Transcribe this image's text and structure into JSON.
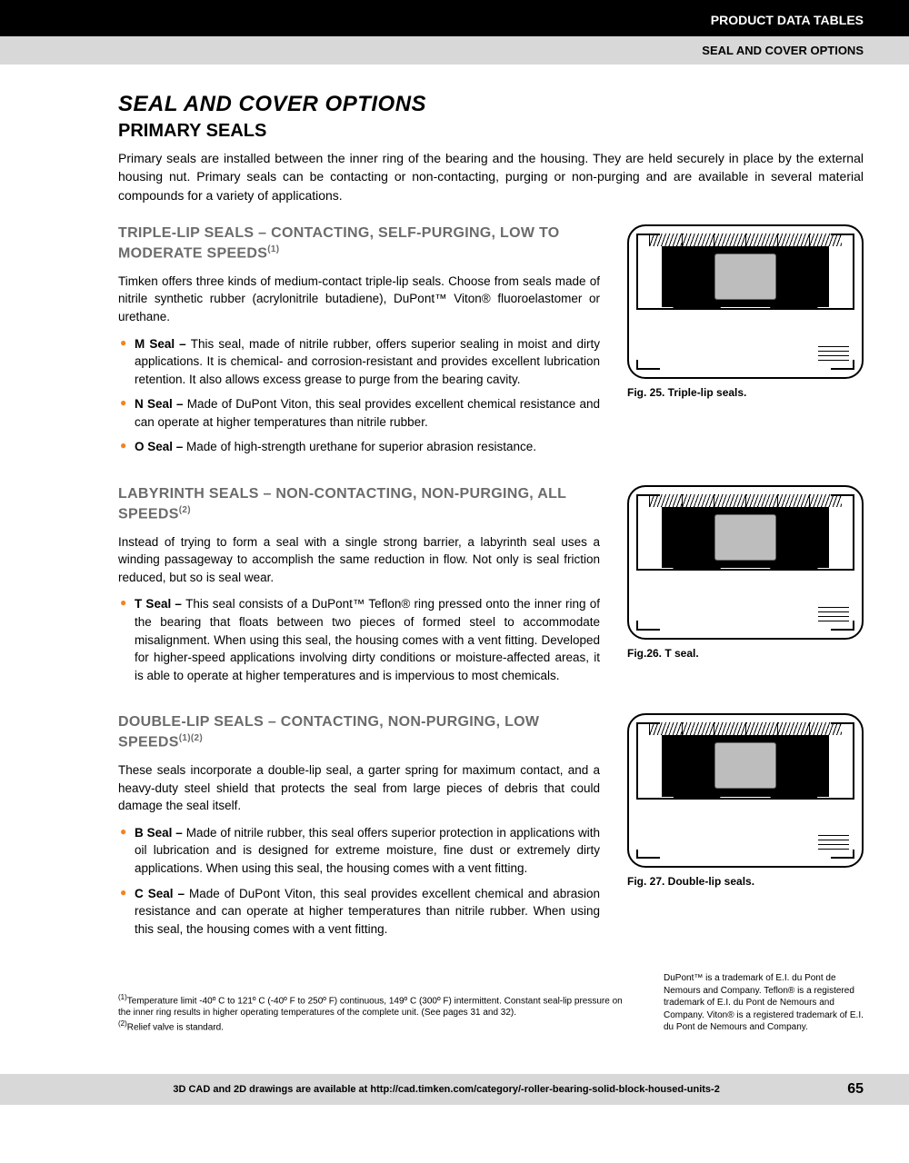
{
  "header": {
    "line1": "PRODUCT DATA TABLES",
    "line2": "SEAL AND COVER OPTIONS"
  },
  "title": "SEAL AND COVER OPTIONS",
  "subtitle": "PRIMARY SEALS",
  "intro": "Primary seals are installed between the inner ring of the bearing and the housing. They are held securely in place by the external housing nut. Primary seals can be contacting or non-contacting, purging or non-purging and are available in several material compounds for a variety of applications.",
  "sections": [
    {
      "heading": "TRIPLE-LIP SEALS – CONTACTING, SELF-PURGING, LOW TO MODERATE SPEEDS",
      "sup": "(1)",
      "para": "Timken offers three kinds of medium-contact triple-lip seals. Choose from seals made of nitrile synthetic rubber (acrylonitrile butadiene), DuPont™ Viton® fluoroelastomer or urethane.",
      "bullets": [
        {
          "label": "M Seal –",
          "text": "This seal, made of nitrile rubber, offers superior sealing in moist and dirty applications. It is chemical- and corrosion-resistant and provides excellent lubrication retention. It also allows excess grease to purge from the bearing cavity."
        },
        {
          "label": "N Seal –",
          "text": "Made of DuPont Viton, this seal provides excellent chemical resistance and can operate at higher temperatures than nitrile rubber."
        },
        {
          "label": "O Seal –",
          "text": "Made of high-strength urethane for superior abrasion resistance."
        }
      ],
      "caption": "Fig. 25. Triple-lip seals."
    },
    {
      "heading": "LABYRINTH SEALS – NON-CONTACTING, NON-PURGING, ALL SPEEDS",
      "sup": "(2)",
      "para": "Instead of trying to form a seal with a single strong barrier, a labyrinth seal uses a winding passageway to accomplish the same reduction in flow. Not only is seal friction reduced, but so is seal wear.",
      "bullets": [
        {
          "label": "T Seal –",
          "text": "This seal consists of a DuPont™ Teflon® ring pressed onto the inner ring of the bearing that floats between two pieces of formed steel to accommodate misalignment. When using this seal, the housing comes with a vent fitting. Developed for higher-speed applications involving dirty conditions or moisture-affected areas, it is able to operate at higher temperatures and is impervious to most chemicals."
        }
      ],
      "caption": "Fig.26. T seal."
    },
    {
      "heading": "DOUBLE-LIP SEALS – CONTACTING, NON-PURGING, LOW SPEEDS",
      "sup": "(1)(2)",
      "para": "These seals incorporate a double-lip seal, a garter spring for maximum contact, and a heavy-duty steel shield that protects the seal from large pieces of debris that could damage the seal itself.",
      "bullets": [
        {
          "label": "B Seal –",
          "text": "Made of nitrile rubber, this seal offers superior protection in applications with oil lubrication and is designed for extreme moisture, fine dust or extremely dirty applications. When using this seal, the housing comes with a vent fitting."
        },
        {
          "label": "C Seal –",
          "text": "Made of DuPont Viton, this seal provides excellent chemical and abrasion resistance and can operate at higher temperatures than nitrile rubber. When using this seal, the housing comes with a vent fitting."
        }
      ],
      "caption": "Fig. 27. Double-lip seals."
    }
  ],
  "footnotes": [
    "Temperature limit -40º C to 121º C (-40º F to 250º F) continuous, 149º C (300º F) intermittent. Constant seal-lip pressure on the inner ring results in higher operating temperatures of the complete unit. (See pages 31 and 32).",
    "Relief valve is standard."
  ],
  "trademark": "DuPont™ is a trademark of E.I. du Pont de Nemours and Company. Teflon® is a registered trademark of E.I. du Pont de Nemours and Company. Viton® is a registered trademark of E.I. du Pont de Nemours and Company.",
  "footer": {
    "text": "3D CAD and 2D drawings are available at http://cad.timken.com/category/-roller-bearing-solid-block-housed-units-2",
    "page": "65"
  }
}
